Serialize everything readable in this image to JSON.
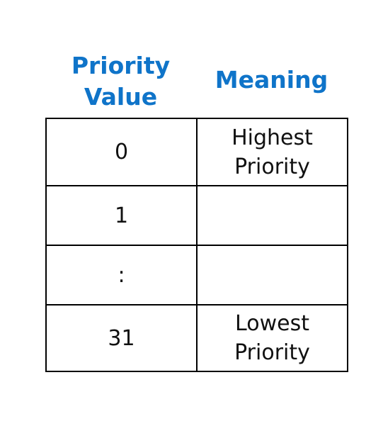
{
  "headers": {
    "priority_value": "Priority\nValue",
    "meaning": "Meaning"
  },
  "rows": [
    {
      "value": "0",
      "meaning": "Highest\nPriority"
    },
    {
      "value": "1",
      "meaning": ""
    },
    {
      "value": ":",
      "meaning": ""
    },
    {
      "value": "31",
      "meaning": "Lowest\nPriority"
    }
  ],
  "colors": {
    "header_text": "#0f74c9",
    "border": "#000000",
    "cell_text": "#111111"
  }
}
